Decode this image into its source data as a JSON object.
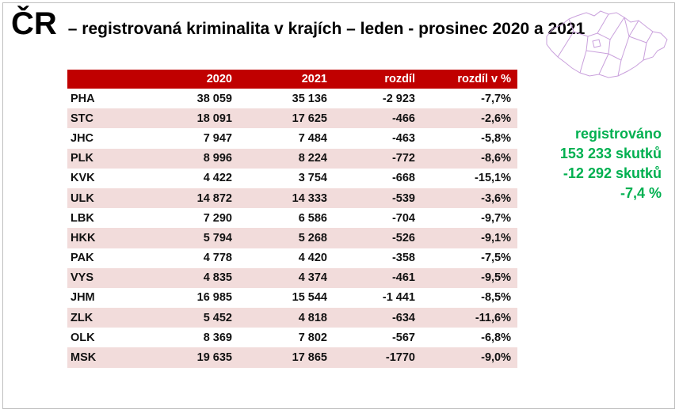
{
  "title": {
    "main": "ČR",
    "subtitle": "– registrovaná kriminalita v krajích – leden - prosinec 2020 a 2021"
  },
  "table": {
    "headers": [
      "",
      "2020",
      "2021",
      "rozdíl",
      "rozdíl v %"
    ],
    "rows": [
      [
        "PHA",
        "38 059",
        "35 136",
        "-2 923",
        "-7,7%"
      ],
      [
        "STC",
        "18 091",
        "17 625",
        "-466",
        "-2,6%"
      ],
      [
        "JHC",
        "7 947",
        "7 484",
        "-463",
        "-5,8%"
      ],
      [
        "PLK",
        "8 996",
        "8 224",
        "-772",
        "-8,6%"
      ],
      [
        "KVK",
        "4 422",
        "3 754",
        "-668",
        "-15,1%"
      ],
      [
        "ULK",
        "14 872",
        "14 333",
        "-539",
        "-3,6%"
      ],
      [
        "LBK",
        "7 290",
        "6 586",
        "-704",
        "-9,7%"
      ],
      [
        "HKK",
        "5 794",
        "5 268",
        "-526",
        "-9,1%"
      ],
      [
        "PAK",
        "4 778",
        "4 420",
        "-358",
        "-7,5%"
      ],
      [
        "VYS",
        "4 835",
        "4 374",
        "-461",
        "-9,5%"
      ],
      [
        "JHM",
        "16 985",
        "15 544",
        "-1 441",
        "-8,5%"
      ],
      [
        "ZLK",
        "5 452",
        "4 818",
        "-634",
        "-11,6%"
      ],
      [
        "OLK",
        "8 369",
        "7 802",
        "-567",
        "-6,8%"
      ],
      [
        "MSK",
        "19 635",
        "17 865",
        "-1770",
        "-9,0%"
      ]
    ]
  },
  "summary": {
    "line1": "registrováno",
    "line2": "153 233 skutků",
    "line3": "-12 292 skutků",
    "line4": "-7,4 %"
  },
  "colors": {
    "header_bg": "#c00000",
    "row_alt_bg": "#f2dcdb",
    "summary_text": "#00b050",
    "map_outline": "#c9a0dc"
  },
  "icons": {
    "map": "czech-regions-map-outline"
  }
}
